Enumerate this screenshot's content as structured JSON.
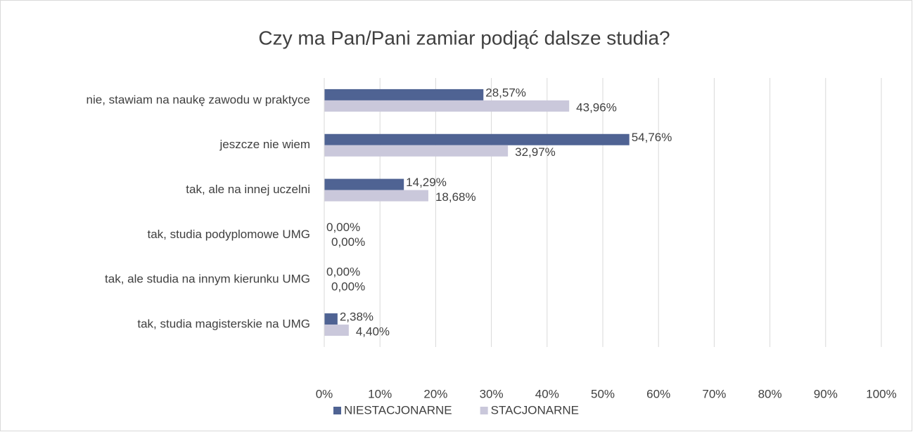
{
  "chart_data": {
    "type": "hbar",
    "title": "Czy ma Pan/Pani zamiar podjąć dalsze studia?",
    "categories": [
      "nie, stawiam na naukę zawodu w praktyce",
      "jeszcze nie wiem",
      "tak, ale na innej uczelni",
      "tak, studia podyplomowe UMG",
      "tak, ale studia na innym kierunku UMG",
      "tak, studia magisterskie na UMG"
    ],
    "series": [
      {
        "name": "NIESTACJONARNE",
        "color": "#4f6393",
        "values": [
          28.57,
          54.76,
          14.29,
          0,
          0,
          2.38
        ],
        "value_labels": [
          "28,57%",
          "54,76%",
          "14,29%",
          "0,00%",
          "0,00%",
          "2,38%"
        ]
      },
      {
        "name": "STACJONARNE",
        "color": "#cac8db",
        "values": [
          43.96,
          32.97,
          18.68,
          0,
          0,
          4.4
        ],
        "value_labels": [
          "43,96%",
          "32,97%",
          "18,68%",
          "0,00%",
          "0,00%",
          "4,40%"
        ]
      }
    ],
    "xlim": [
      0,
      100
    ],
    "xticks": [
      {
        "value": 0,
        "label": "0%"
      },
      {
        "value": 10,
        "label": "10%"
      },
      {
        "value": 20,
        "label": "20%"
      },
      {
        "value": 30,
        "label": "30%"
      },
      {
        "value": 40,
        "label": "40%"
      },
      {
        "value": 50,
        "label": "50%"
      },
      {
        "value": 60,
        "label": "60%"
      },
      {
        "value": 70,
        "label": "70%"
      },
      {
        "value": 80,
        "label": "80%"
      },
      {
        "value": 90,
        "label": "90%"
      },
      {
        "value": 100,
        "label": "100%"
      }
    ],
    "grid": true,
    "legend": "bottom"
  }
}
